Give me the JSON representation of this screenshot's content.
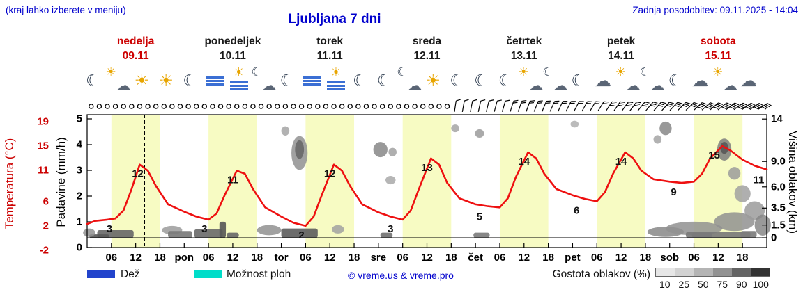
{
  "header": {
    "hint": "(kraj lahko izberete v meniju)",
    "title": "Ljubljana 7 dni",
    "updated": "Zadnja posodobitev: 09.11.2025 - 14:04"
  },
  "days": [
    {
      "name": "nedelja",
      "date": "09.11",
      "color": "#cc0000"
    },
    {
      "name": "ponedeljek",
      "date": "10.11",
      "color": "#1a1a1a"
    },
    {
      "name": "torek",
      "date": "11.11",
      "color": "#1a1a1a"
    },
    {
      "name": "sreda",
      "date": "12.11",
      "color": "#1a1a1a"
    },
    {
      "name": "četrtek",
      "date": "13.11",
      "color": "#1a1a1a"
    },
    {
      "name": "petek",
      "date": "14.11",
      "color": "#1a1a1a"
    },
    {
      "name": "sobota",
      "date": "15.11",
      "color": "#cc0000"
    }
  ],
  "axes": {
    "temp_label": "Temperatura (°C)",
    "precip_label": "Padavine (mm/h)",
    "cloud_label": "Višina oblakov (km)"
  },
  "legend": {
    "rain": "Dež",
    "rain_color": "#2244cc",
    "showers": "Možnost ploh",
    "showers_color": "#00ddc9",
    "copyright": "© vreme.us & vreme.pro",
    "cloud_density": "Gostota oblakov (%)",
    "cloud_scale": [
      "10",
      "25",
      "50",
      "75",
      "90",
      "100"
    ],
    "scale_colors": [
      "#e6e6e6",
      "#d2d2d2",
      "#b4b4b4",
      "#929292",
      "#646464",
      "#323232"
    ]
  },
  "chart_data": {
    "type": "meteogram",
    "x_unit": "hour",
    "x_range": [
      0,
      168
    ],
    "temp_axis": {
      "ticks": [
        19,
        15,
        11,
        6,
        2,
        -2
      ],
      "label": "Temperatura (°C)"
    },
    "precip_axis": {
      "ticks": [
        5,
        4,
        3,
        2,
        1,
        0
      ],
      "label": "Padavine (mm/h)"
    },
    "cloud_axis": {
      "km": [
        14,
        9,
        6,
        3.5,
        1.5,
        0
      ],
      "labels": [
        "14",
        "9.0",
        "6.0",
        "3.5",
        "1.5",
        "0"
      ],
      "label": "Višina oblakov (km)"
    },
    "day_bands": {
      "start_hour": 6,
      "end_hour": 18,
      "color": "#f7fbc3"
    },
    "now_line_hour": 14.2,
    "temperature": {
      "color": "#ee1010",
      "points": [
        [
          0,
          2.3
        ],
        [
          2,
          2.8
        ],
        [
          5,
          3
        ],
        [
          7,
          3.2
        ],
        [
          9,
          4.5
        ],
        [
          11,
          8
        ],
        [
          13,
          12
        ],
        [
          15,
          11
        ],
        [
          17,
          8.5
        ],
        [
          20,
          5.5
        ],
        [
          24,
          4.3
        ],
        [
          27,
          3.5
        ],
        [
          30,
          3
        ],
        [
          32,
          4
        ],
        [
          34,
          7
        ],
        [
          37,
          11
        ],
        [
          39,
          10.5
        ],
        [
          41,
          8
        ],
        [
          44,
          5
        ],
        [
          48,
          3.5
        ],
        [
          51,
          2.5
        ],
        [
          54,
          2
        ],
        [
          56,
          3.5
        ],
        [
          58,
          7
        ],
        [
          61,
          12
        ],
        [
          63,
          11
        ],
        [
          65,
          8.5
        ],
        [
          68,
          5.5
        ],
        [
          72,
          4.2
        ],
        [
          75,
          3.5
        ],
        [
          78,
          3
        ],
        [
          80,
          4.5
        ],
        [
          82,
          8
        ],
        [
          85,
          13
        ],
        [
          87,
          12
        ],
        [
          89,
          9
        ],
        [
          92,
          6.5
        ],
        [
          96,
          5.5
        ],
        [
          99,
          5.2
        ],
        [
          102,
          5
        ],
        [
          104,
          6.5
        ],
        [
          106,
          10
        ],
        [
          109,
          14
        ],
        [
          111,
          13
        ],
        [
          113,
          10.5
        ],
        [
          116,
          8
        ],
        [
          120,
          7
        ],
        [
          123,
          6.4
        ],
        [
          126,
          6
        ],
        [
          128,
          7.5
        ],
        [
          130,
          10.5
        ],
        [
          133,
          14
        ],
        [
          135,
          13
        ],
        [
          137,
          11
        ],
        [
          140,
          9.6
        ],
        [
          144,
          9.2
        ],
        [
          147,
          9
        ],
        [
          150,
          9.2
        ],
        [
          152,
          10.5
        ],
        [
          154,
          13
        ],
        [
          157,
          15
        ],
        [
          159,
          14.3
        ],
        [
          162,
          12.8
        ],
        [
          165,
          11.8
        ],
        [
          168,
          11.2
        ]
      ]
    },
    "temp_labels": [
      [
        5.5,
        3,
        "3"
      ],
      [
        12.5,
        12,
        "12"
      ],
      [
        29,
        3,
        "3"
      ],
      [
        36,
        11,
        "11"
      ],
      [
        53,
        2,
        "2"
      ],
      [
        60,
        12,
        "12"
      ],
      [
        75,
        3,
        "3"
      ],
      [
        84,
        13,
        "13"
      ],
      [
        97,
        5,
        "5"
      ],
      [
        108,
        14,
        "14"
      ],
      [
        121,
        6,
        "6"
      ],
      [
        132,
        14,
        "14"
      ],
      [
        145,
        9,
        "9"
      ],
      [
        155,
        15,
        "15"
      ],
      [
        166,
        11,
        "11"
      ]
    ],
    "clouds": [
      [
        7,
        0.45,
        9,
        0.9,
        0.7,
        "r"
      ],
      [
        3,
        0.2,
        5,
        0.4,
        0.78,
        "r"
      ],
      [
        0.5,
        0.6,
        3,
        1,
        0.5,
        "e"
      ],
      [
        21,
        0.9,
        5,
        1,
        0.45,
        "e"
      ],
      [
        23,
        0.4,
        6,
        0.8,
        0.62,
        "r"
      ],
      [
        30,
        0.5,
        7,
        1,
        0.68,
        "r"
      ],
      [
        33.5,
        0.95,
        1.6,
        1.9,
        0.78,
        "r"
      ],
      [
        36,
        0.3,
        3,
        0.6,
        0.7,
        "r"
      ],
      [
        45,
        0.9,
        6,
        1.2,
        0.5,
        "e"
      ],
      [
        49,
        12.6,
        2,
        1.1,
        0.4,
        "e"
      ],
      [
        52.5,
        10,
        4,
        4,
        0.5,
        "e"
      ],
      [
        52.5,
        10.4,
        2.2,
        2.2,
        0.72,
        "e"
      ],
      [
        52.5,
        0.55,
        9,
        1.1,
        0.75,
        "r"
      ],
      [
        62,
        1,
        3,
        1,
        0.42,
        "e"
      ],
      [
        72.5,
        10.4,
        3.5,
        1.8,
        0.55,
        "e"
      ],
      [
        75.5,
        10.1,
        2,
        1,
        0.42,
        "e"
      ],
      [
        75,
        6.8,
        2.5,
        1,
        0.38,
        "e"
      ],
      [
        74,
        0.3,
        3,
        0.6,
        0.65,
        "r"
      ],
      [
        91,
        12.9,
        2,
        0.9,
        0.4,
        "e"
      ],
      [
        97,
        12.3,
        2.2,
        1,
        0.45,
        "e"
      ],
      [
        97.5,
        0.3,
        4,
        0.6,
        0.6,
        "r"
      ],
      [
        120.5,
        13.4,
        2,
        0.8,
        0.35,
        "e"
      ],
      [
        141,
        11.6,
        2,
        1,
        0.4,
        "e"
      ],
      [
        143,
        12.9,
        3,
        1.6,
        0.55,
        "e"
      ],
      [
        143,
        0.7,
        9,
        1.2,
        0.55,
        "e"
      ],
      [
        150,
        1.1,
        14,
        1.6,
        0.5,
        "e"
      ],
      [
        152,
        0.3,
        5,
        0.6,
        0.62,
        "r"
      ],
      [
        156,
        0.35,
        16,
        0.7,
        0.62,
        "r"
      ],
      [
        157.5,
        10.4,
        3.5,
        2.6,
        0.6,
        "e"
      ],
      [
        157.5,
        10.6,
        2,
        1.4,
        0.8,
        "e"
      ],
      [
        160,
        7.6,
        3,
        1.5,
        0.45,
        "e"
      ],
      [
        160,
        1.9,
        10,
        2.2,
        0.5,
        "e"
      ],
      [
        162,
        5.2,
        4,
        2,
        0.42,
        "e"
      ],
      [
        163.5,
        0.4,
        4,
        0.8,
        0.6,
        "r"
      ],
      [
        165,
        3.2,
        5,
        2.2,
        0.45,
        "e"
      ],
      [
        167,
        1.5,
        4,
        2.5,
        0.55,
        "e"
      ]
    ],
    "wind": {
      "step_hours": 2,
      "calm_until_hour": 90,
      "color": "#000000"
    },
    "icons": [
      "moon",
      "cloud-sun",
      "sun",
      "sun",
      "moon",
      "fog",
      "fog-sun",
      "cloud-moon",
      "moon",
      "fog",
      "fog-sun",
      "moon",
      "moon",
      "cloud-moon",
      "sun",
      "moon",
      "moon",
      "moon",
      "cloud-sun",
      "cloud-moon",
      "moon",
      "cloud",
      "cloud-sun",
      "cloud-moon",
      "moon",
      "cloud",
      "cloud-sun",
      "cloud"
    ],
    "x_labels": [
      [
        6,
        "06"
      ],
      [
        12,
        "12"
      ],
      [
        18,
        "18"
      ],
      [
        24,
        "pon"
      ],
      [
        30,
        "06"
      ],
      [
        36,
        "12"
      ],
      [
        42,
        "18"
      ],
      [
        48,
        "tor"
      ],
      [
        54,
        "06"
      ],
      [
        60,
        "12"
      ],
      [
        66,
        "18"
      ],
      [
        72,
        "sre"
      ],
      [
        78,
        "06"
      ],
      [
        84,
        "12"
      ],
      [
        90,
        "18"
      ],
      [
        96,
        "čet"
      ],
      [
        102,
        "06"
      ],
      [
        108,
        "12"
      ],
      [
        114,
        "18"
      ],
      [
        120,
        "pet"
      ],
      [
        126,
        "06"
      ],
      [
        132,
        "12"
      ],
      [
        138,
        "18"
      ],
      [
        144,
        "sob"
      ],
      [
        150,
        "06"
      ],
      [
        156,
        "12"
      ],
      [
        162,
        "18"
      ]
    ]
  }
}
